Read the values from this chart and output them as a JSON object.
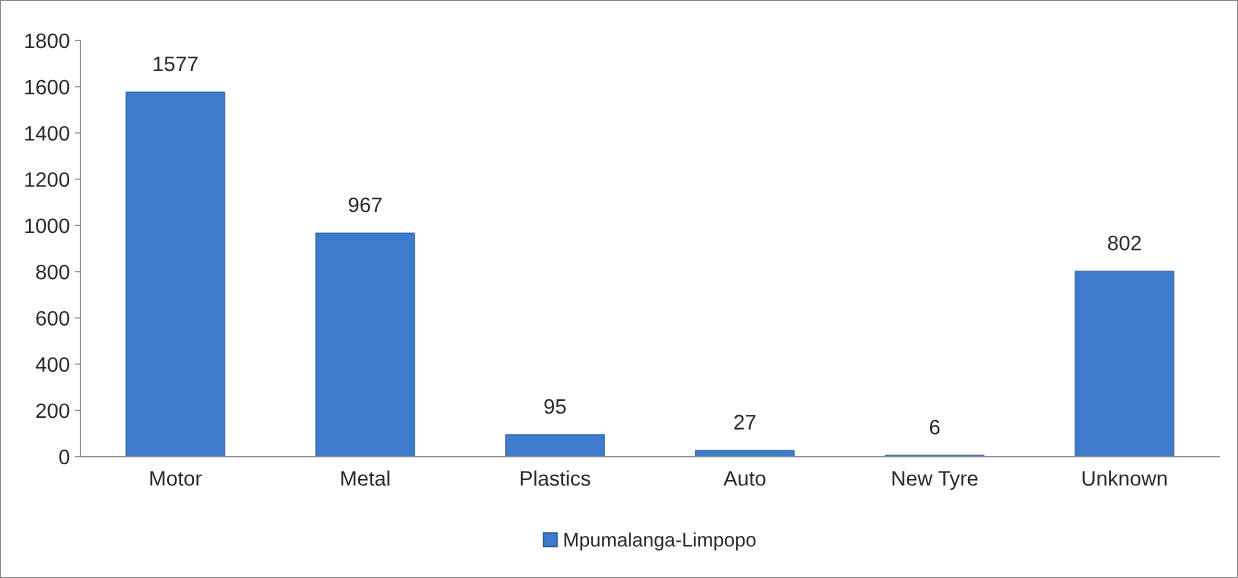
{
  "chart_data": {
    "type": "bar",
    "categories": [
      "Motor",
      "Metal",
      "Plastics",
      "Auto",
      "New Tyre",
      "Unknown"
    ],
    "series": [
      {
        "name": "Mpumalanga-Limpopo",
        "color": "#3d7ccc",
        "values": [
          1577,
          967,
          95,
          27,
          6,
          802
        ]
      }
    ],
    "ylim": [
      0,
      1800
    ],
    "yticks": [
      0,
      200,
      400,
      600,
      800,
      1000,
      1200,
      1400,
      1600,
      1800
    ],
    "data_labels": true,
    "grid": false,
    "legend": "bottom"
  }
}
